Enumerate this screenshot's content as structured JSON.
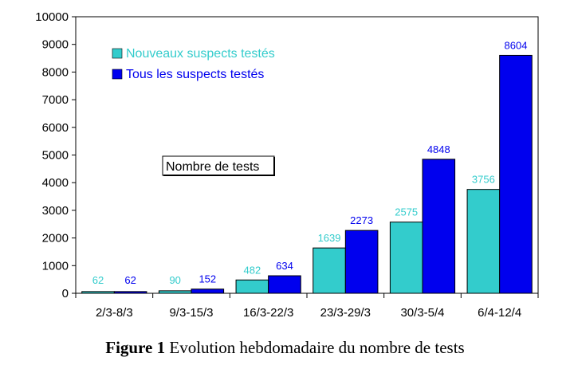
{
  "chart_data": {
    "type": "bar",
    "categories": [
      "2/3-8/3",
      "9/3-15/3",
      "16/3-22/3",
      "23/3-29/3",
      "30/3-5/4",
      "6/4-12/4"
    ],
    "series": [
      {
        "name": "Nouveaux suspects testés",
        "color": "#33cccc",
        "values": [
          62,
          90,
          482,
          1639,
          2575,
          3756
        ]
      },
      {
        "name": "Tous les suspects testés",
        "color": "#0000ee",
        "values": [
          62,
          152,
          634,
          2273,
          4848,
          8604
        ]
      }
    ],
    "yticks": [
      0,
      1000,
      2000,
      3000,
      4000,
      5000,
      6000,
      7000,
      8000,
      9000,
      10000
    ],
    "ylim": [
      0,
      10000
    ],
    "grid": false,
    "legend_position": "top-left",
    "annotation": "Nombre de tests"
  },
  "caption": {
    "label": "Figure 1",
    "text": "Evolution hebdomadaire du nombre de tests"
  }
}
